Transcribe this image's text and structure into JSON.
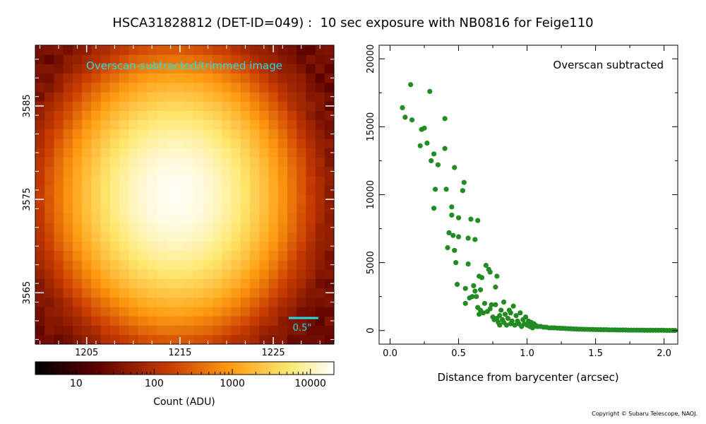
{
  "title": "HSCA31828812 (DET-ID=049) :  10 sec exposure with NB0816 for Feige110",
  "copyright": "Copyright © Subaru Telescope, NAOJ.",
  "chart_data": [
    {
      "type": "heatmap",
      "annotation": "Overscan-subtracted/trimmed image",
      "scale_label": "0.5\"",
      "xlim": [
        1199.5,
        1231.5
      ],
      "ylim": [
        3559.5,
        3591.5
      ],
      "x_ticks": [
        1205,
        1215,
        1225
      ],
      "y_ticks": [
        3565,
        3575,
        3585
      ],
      "star_center": [
        1214.5,
        3575.5
      ],
      "colormap": "gist_heat",
      "colorbar": {
        "label": "Count (ADU)",
        "scale": "log",
        "range": [
          3,
          20000
        ],
        "ticks": [
          "10",
          "100",
          "1000",
          "10000"
        ]
      }
    },
    {
      "type": "scatter",
      "annotation": "Overscan subtracted",
      "xlabel": "Distance from barycenter (arcsec)",
      "ylabel": "",
      "xlim": [
        -0.08,
        2.1
      ],
      "ylim": [
        -1000,
        21000
      ],
      "x_ticks": [
        "0.0",
        "0.5",
        "1.0",
        "1.5",
        "2.0"
      ],
      "y_ticks": [
        "0",
        "5000",
        "10000",
        "15000",
        "20000"
      ],
      "color": "#228b22",
      "points": [
        [
          0.09,
          16400
        ],
        [
          0.11,
          15700
        ],
        [
          0.15,
          18100
        ],
        [
          0.16,
          15500
        ],
        [
          0.22,
          13600
        ],
        [
          0.23,
          14800
        ],
        [
          0.25,
          14900
        ],
        [
          0.27,
          13800
        ],
        [
          0.29,
          17600
        ],
        [
          0.3,
          12500
        ],
        [
          0.32,
          13000
        ],
        [
          0.33,
          10400
        ],
        [
          0.32,
          9000
        ],
        [
          0.35,
          12200
        ],
        [
          0.4,
          15600
        ],
        [
          0.4,
          13400
        ],
        [
          0.41,
          10400
        ],
        [
          0.42,
          6100
        ],
        [
          0.43,
          7200
        ],
        [
          0.45,
          9100
        ],
        [
          0.45,
          8500
        ],
        [
          0.46,
          7000
        ],
        [
          0.47,
          5900
        ],
        [
          0.47,
          12000
        ],
        [
          0.48,
          5000
        ],
        [
          0.49,
          3400
        ],
        [
          0.5,
          6900
        ],
        [
          0.5,
          8300
        ],
        [
          0.53,
          10300
        ],
        [
          0.54,
          10900
        ],
        [
          0.55,
          3100
        ],
        [
          0.55,
          2000
        ],
        [
          0.57,
          6800
        ],
        [
          0.57,
          4900
        ],
        [
          0.58,
          2400
        ],
        [
          0.59,
          8200
        ],
        [
          0.6,
          2500
        ],
        [
          0.61,
          3300
        ],
        [
          0.62,
          6700
        ],
        [
          0.62,
          2900
        ],
        [
          0.63,
          2500
        ],
        [
          0.64,
          8100
        ],
        [
          0.64,
          1700
        ],
        [
          0.65,
          1200
        ],
        [
          0.65,
          4000
        ],
        [
          0.66,
          3000
        ],
        [
          0.66,
          1500
        ],
        [
          0.67,
          3900
        ],
        [
          0.68,
          1300
        ],
        [
          0.69,
          2000
        ],
        [
          0.7,
          4800
        ],
        [
          0.71,
          1400
        ],
        [
          0.72,
          4500
        ],
        [
          0.73,
          1600
        ],
        [
          0.73,
          4300
        ],
        [
          0.74,
          1900
        ],
        [
          0.75,
          1000
        ],
        [
          0.76,
          800
        ],
        [
          0.77,
          3200
        ],
        [
          0.77,
          1900
        ],
        [
          0.78,
          4000
        ],
        [
          0.78,
          900
        ],
        [
          0.79,
          600
        ],
        [
          0.8,
          1100
        ],
        [
          0.8,
          400
        ],
        [
          0.81,
          1500
        ],
        [
          0.82,
          800
        ],
        [
          0.83,
          2100
        ],
        [
          0.83,
          600
        ],
        [
          0.84,
          1200
        ],
        [
          0.85,
          400
        ],
        [
          0.86,
          900
        ],
        [
          0.87,
          1500
        ],
        [
          0.88,
          1300
        ],
        [
          0.88,
          500
        ],
        [
          0.89,
          700
        ],
        [
          0.9,
          1800
        ],
        [
          0.91,
          400
        ],
        [
          0.92,
          1100
        ],
        [
          0.93,
          700
        ],
        [
          0.94,
          500
        ],
        [
          0.95,
          1300
        ],
        [
          0.96,
          300
        ],
        [
          0.97,
          800
        ],
        [
          0.98,
          500
        ],
        [
          0.99,
          1000
        ],
        [
          1.0,
          400
        ],
        [
          1.01,
          700
        ],
        [
          1.02,
          300
        ],
        [
          1.03,
          600
        ],
        [
          1.04,
          200
        ],
        [
          1.05,
          500
        ],
        [
          1.06,
          400
        ],
        [
          1.07,
          300
        ],
        [
          1.08,
          300
        ],
        [
          1.1,
          300
        ],
        [
          1.12,
          250
        ],
        [
          1.14,
          250
        ],
        [
          1.16,
          200
        ],
        [
          1.18,
          200
        ],
        [
          1.2,
          200
        ],
        [
          1.22,
          180
        ],
        [
          1.24,
          170
        ],
        [
          1.26,
          160
        ],
        [
          1.28,
          150
        ],
        [
          1.3,
          140
        ],
        [
          1.32,
          130
        ],
        [
          1.34,
          120
        ],
        [
          1.36,
          110
        ],
        [
          1.38,
          100
        ],
        [
          1.4,
          100
        ],
        [
          1.42,
          90
        ],
        [
          1.44,
          90
        ],
        [
          1.46,
          80
        ],
        [
          1.48,
          80
        ],
        [
          1.5,
          70
        ],
        [
          1.52,
          70
        ],
        [
          1.54,
          60
        ],
        [
          1.56,
          60
        ],
        [
          1.58,
          60
        ],
        [
          1.6,
          50
        ],
        [
          1.62,
          50
        ],
        [
          1.64,
          50
        ],
        [
          1.66,
          40
        ],
        [
          1.68,
          40
        ],
        [
          1.7,
          40
        ],
        [
          1.72,
          40
        ],
        [
          1.74,
          30
        ],
        [
          1.76,
          30
        ],
        [
          1.78,
          30
        ],
        [
          1.8,
          30
        ],
        [
          1.82,
          30
        ],
        [
          1.84,
          30
        ],
        [
          1.86,
          20
        ],
        [
          1.88,
          20
        ],
        [
          1.9,
          20
        ],
        [
          1.92,
          20
        ],
        [
          1.94,
          20
        ],
        [
          1.96,
          20
        ],
        [
          1.98,
          20
        ],
        [
          2.0,
          20
        ],
        [
          2.02,
          10
        ],
        [
          2.04,
          10
        ],
        [
          2.06,
          10
        ],
        [
          2.08,
          10
        ]
      ]
    }
  ]
}
